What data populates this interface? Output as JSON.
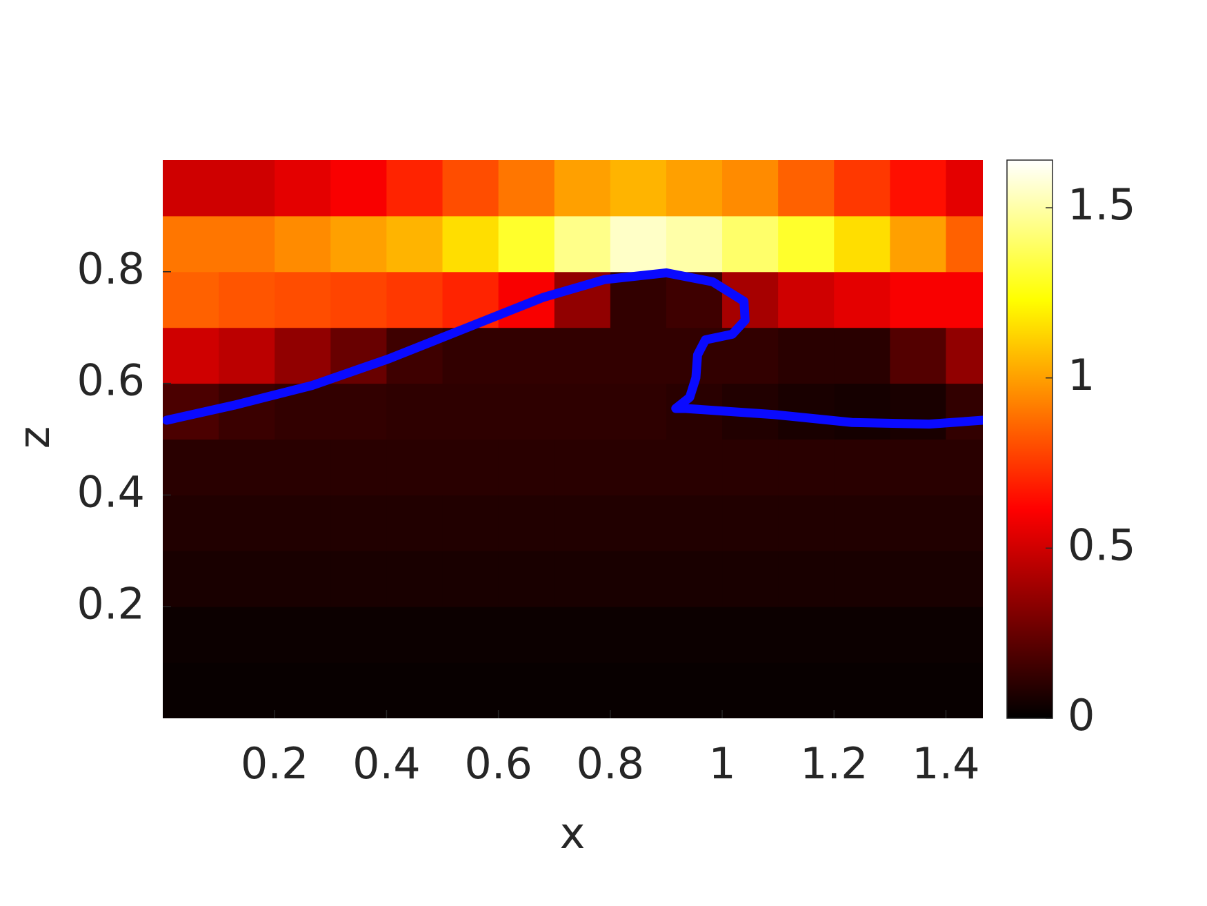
{
  "chart_data": {
    "type": "heatmap",
    "xlabel": "x",
    "ylabel": "z",
    "xlim": [
      0,
      1.466
    ],
    "ylim": [
      0,
      1
    ],
    "xticks": [
      0.2,
      0.4,
      0.6,
      0.8,
      1,
      1.2,
      1.4
    ],
    "yticks": [
      0.2,
      0.4,
      0.6,
      0.8
    ],
    "colormap": "hot",
    "clim": [
      0,
      1.64
    ],
    "cticks": [
      0,
      0.5,
      1,
      1.5
    ],
    "x": [
      0.05,
      0.15,
      0.25,
      0.35,
      0.45,
      0.55,
      0.65,
      0.75,
      0.85,
      0.95,
      1.05,
      1.15,
      1.25,
      1.35,
      1.45
    ],
    "z": [
      0.05,
      0.15,
      0.25,
      0.35,
      0.45,
      0.55,
      0.65,
      0.75,
      0.85,
      0.95
    ],
    "values": [
      [
        0.02,
        0.02,
        0.02,
        0.02,
        0.02,
        0.02,
        0.02,
        0.02,
        0.02,
        0.02,
        0.02,
        0.02,
        0.02,
        0.02,
        0.02
      ],
      [
        0.03,
        0.03,
        0.03,
        0.03,
        0.03,
        0.03,
        0.03,
        0.03,
        0.03,
        0.03,
        0.03,
        0.03,
        0.03,
        0.03,
        0.03
      ],
      [
        0.06,
        0.06,
        0.06,
        0.06,
        0.06,
        0.06,
        0.06,
        0.06,
        0.06,
        0.06,
        0.06,
        0.06,
        0.06,
        0.06,
        0.06
      ],
      [
        0.08,
        0.08,
        0.08,
        0.08,
        0.08,
        0.08,
        0.08,
        0.08,
        0.08,
        0.08,
        0.08,
        0.08,
        0.08,
        0.08,
        0.08
      ],
      [
        0.1,
        0.1,
        0.1,
        0.1,
        0.1,
        0.1,
        0.1,
        0.1,
        0.1,
        0.1,
        0.1,
        0.1,
        0.1,
        0.1,
        0.1
      ],
      [
        0.18,
        0.14,
        0.12,
        0.12,
        0.11,
        0.11,
        0.11,
        0.11,
        0.11,
        0.1,
        0.08,
        0.06,
        0.05,
        0.06,
        0.12
      ],
      [
        0.5,
        0.45,
        0.35,
        0.25,
        0.15,
        0.12,
        0.12,
        0.12,
        0.12,
        0.12,
        0.12,
        0.1,
        0.1,
        0.2,
        0.35
      ],
      [
        0.85,
        0.82,
        0.8,
        0.78,
        0.75,
        0.7,
        0.6,
        0.35,
        0.12,
        0.15,
        0.4,
        0.5,
        0.55,
        0.6,
        0.6
      ],
      [
        0.9,
        0.9,
        0.95,
        1.0,
        1.05,
        1.15,
        1.3,
        1.45,
        1.55,
        1.5,
        1.4,
        1.3,
        1.15,
        1.0,
        0.85
      ],
      [
        0.5,
        0.5,
        0.55,
        0.6,
        0.7,
        0.8,
        0.9,
        1.0,
        1.05,
        1.0,
        0.95,
        0.85,
        0.75,
        0.65,
        0.55
      ]
    ],
    "interface": {
      "color": "#0a0aff",
      "x": [
        0.007,
        0.128,
        0.266,
        0.404,
        0.542,
        0.68,
        0.79,
        0.9,
        0.983,
        1.039,
        1.041,
        1.018,
        0.97,
        0.956,
        0.953,
        0.942,
        0.917,
        0.935,
        1.094,
        1.232,
        1.37,
        1.466
      ],
      "z": [
        0.534,
        0.561,
        0.596,
        0.644,
        0.699,
        0.754,
        0.786,
        0.798,
        0.782,
        0.747,
        0.713,
        0.688,
        0.678,
        0.651,
        0.61,
        0.575,
        0.555,
        0.555,
        0.544,
        0.53,
        0.527,
        0.534
      ]
    }
  }
}
